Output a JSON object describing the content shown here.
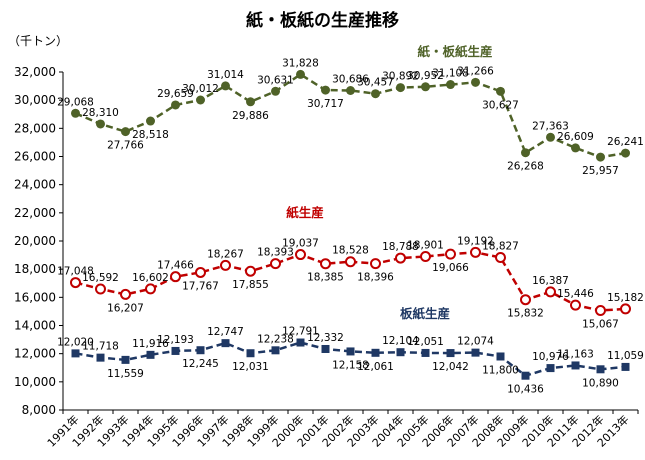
{
  "chart_data": {
    "type": "line",
    "title": "紙・板紙の生産推移",
    "unit_label": "（千トン）",
    "categories": [
      "1991年",
      "1992年",
      "1993年",
      "1994年",
      "1995年",
      "1996年",
      "1997年",
      "1998年",
      "1999年",
      "2000年",
      "2001年",
      "2002年",
      "2003年",
      "2004年",
      "2005年",
      "2006年",
      "2007年",
      "2008年",
      "2009年",
      "2010年",
      "2011年",
      "2012年",
      "2013年"
    ],
    "ylim": [
      8000,
      32000
    ],
    "yticks": [
      "8,000",
      "10,000",
      "12,000",
      "14,000",
      "16,000",
      "18,000",
      "20,000",
      "22,000",
      "24,000",
      "26,000",
      "28,000",
      "30,000",
      "32,000"
    ],
    "grid": false,
    "series": [
      {
        "name": "紙・板紙生産",
        "color": "#4f6228",
        "marker": "filled-circle",
        "values": [
          29068,
          28310,
          27766,
          28518,
          29659,
          30012,
          31014,
          29886,
          30631,
          31828,
          30717,
          30686,
          30457,
          30892,
          30952,
          31108,
          31266,
          30627,
          26268,
          27363,
          26609,
          25957,
          26241
        ],
        "labels": [
          "29,068",
          "28,310",
          "27,766",
          "28,518",
          "29,659",
          "30,012",
          "31,014",
          "29,886",
          "30,631",
          "31,828",
          "30,717",
          "30,686",
          "30,457",
          "30,892",
          "30,952",
          "31,108",
          "31,266",
          "30,627",
          "26,268",
          "27,363",
          "26,609",
          "25,957",
          "26,241"
        ]
      },
      {
        "name": "紙生産",
        "color": "#c00000",
        "marker": "open-circle",
        "values": [
          17048,
          16592,
          16207,
          16602,
          17466,
          17767,
          18267,
          17855,
          18393,
          19037,
          18385,
          18528,
          18396,
          18788,
          18901,
          19066,
          19192,
          18827,
          15832,
          16387,
          15446,
          15067,
          15182
        ],
        "labels": [
          "17,048",
          "16,592",
          "16,207",
          "16,602",
          "17,466",
          "17,767",
          "18,267",
          "17,855",
          "18,393",
          "19,037",
          "18,385",
          "18,528",
          "18,396",
          "18,788",
          "18,901",
          "19,066",
          "19,192",
          "18,827",
          "15,832",
          "16,387",
          "15,446",
          "15,067",
          "15,182"
        ]
      },
      {
        "name": "板紙生産",
        "color": "#1f3864",
        "marker": "filled-square",
        "values": [
          12020,
          11718,
          11559,
          11916,
          12193,
          12245,
          12747,
          12031,
          12238,
          12791,
          12332,
          12158,
          12061,
          12104,
          12051,
          12042,
          12074,
          11800,
          10436,
          10976,
          11163,
          10890,
          11059
        ],
        "labels": [
          "12,020",
          "11,718",
          "11,559",
          "11,916",
          "12,193",
          "12,245",
          "12,747",
          "12,031",
          "12,238",
          "12,791",
          "12,332",
          "12,158",
          "12,061",
          "12,104",
          "12,051",
          "12,042",
          "12,074",
          "11,800",
          "10,436",
          "10,976",
          "11,163",
          "10,890",
          "11,059"
        ]
      }
    ]
  }
}
